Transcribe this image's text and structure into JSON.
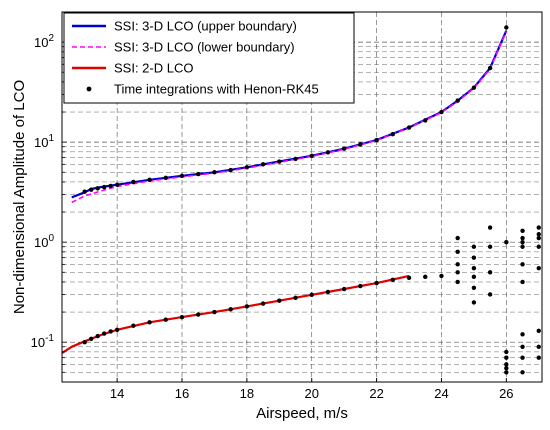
{
  "chart_data": {
    "type": "line",
    "xlabel": "Airspeed, m/s",
    "ylabel": "Non-dimensional Amplitude of LCO",
    "xlim": [
      12.3,
      27.1
    ],
    "ylim": [
      0.04,
      200
    ],
    "yscale": "log",
    "grid": true,
    "legend_placement": "top-left",
    "x_ticks": [
      14,
      16,
      18,
      20,
      22,
      24,
      26
    ],
    "y_ticks": [
      {
        "value": 0.1,
        "base": "10",
        "exp": "-1"
      },
      {
        "value": 1,
        "base": "10",
        "exp": "0"
      },
      {
        "value": 10,
        "base": "10",
        "exp": "1"
      },
      {
        "value": 100,
        "base": "10",
        "exp": "2"
      }
    ],
    "series": [
      {
        "name": "SSI: 3-D LCO (upper boundary)",
        "color": "#0000cc",
        "style": "solid",
        "x": [
          12.6,
          13.0,
          13.2,
          13.5,
          14.0,
          15.0,
          16.0,
          17.0,
          18.0,
          19.0,
          20.0,
          21.0,
          22.0,
          23.0,
          24.0,
          24.5,
          25.0,
          25.5,
          26.0
        ],
        "y": [
          2.8,
          3.15,
          3.4,
          3.55,
          3.75,
          4.2,
          4.6,
          5.0,
          5.6,
          6.4,
          7.3,
          8.6,
          10.5,
          14.0,
          20.0,
          26.0,
          35.0,
          55.0,
          130.0
        ]
      },
      {
        "name": "SSI: 3-D LCO (lower boundary)",
        "color": "#ff00ff",
        "style": "dashed",
        "x": [
          12.6,
          13.0,
          13.5,
          14.0,
          15.0,
          16.0,
          17.0,
          18.0,
          19.0,
          20.0,
          21.0,
          22.0,
          23.0,
          24.0,
          24.5,
          25.0,
          25.5,
          26.0
        ],
        "y": [
          2.5,
          2.9,
          3.25,
          3.6,
          4.1,
          4.5,
          4.9,
          5.5,
          6.3,
          7.2,
          8.5,
          10.4,
          13.9,
          19.8,
          25.5,
          34.5,
          54.0,
          128.0
        ]
      },
      {
        "name": "SSI: 2-D LCO",
        "color": "#e00000",
        "style": "solid",
        "x": [
          12.3,
          12.6,
          13.0,
          13.5,
          14.0,
          15.0,
          16.0,
          17.0,
          18.0,
          19.0,
          20.0,
          21.0,
          22.0,
          23.0
        ],
        "y": [
          0.078,
          0.09,
          0.102,
          0.118,
          0.133,
          0.158,
          0.178,
          0.2,
          0.228,
          0.26,
          0.298,
          0.34,
          0.39,
          0.46
        ]
      },
      {
        "name": "Time integrations with Henon-RK45",
        "color": "#000000",
        "style": "markers",
        "x": [
          13.0,
          13.2,
          13.4,
          13.6,
          13.8,
          14.0,
          14.5,
          15.0,
          15.5,
          16.0,
          16.5,
          17.0,
          17.5,
          18.0,
          18.5,
          19.0,
          19.5,
          20.0,
          20.5,
          21.0,
          21.5,
          22.0,
          22.5,
          23.0,
          23.5,
          24.0,
          24.5,
          25.0,
          25.5,
          26.0,
          13.0,
          13.2,
          13.4,
          13.6,
          13.8,
          14.0,
          14.5,
          15.0,
          15.5,
          16.0,
          16.5,
          17.0,
          17.5,
          18.0,
          18.5,
          19.0,
          19.5,
          20.0,
          20.5,
          21.0,
          21.5,
          22.0,
          22.5,
          23.0,
          23.5,
          24.0,
          24.5,
          24.5,
          24.5,
          24.5,
          24.5,
          25.0,
          25.0,
          25.0,
          25.0,
          25.0,
          25.0,
          25.5,
          25.5,
          25.5,
          25.5,
          26.0,
          26.0,
          26.0,
          26.0,
          26.0,
          26.0,
          26.5,
          26.5,
          26.5,
          26.5,
          26.5,
          26.5,
          26.5,
          26.5,
          26.5,
          26.5,
          27.0,
          27.0,
          27.0,
          27.0,
          27.0,
          27.0,
          27.0,
          27.0
        ],
        "y": [
          3.2,
          3.35,
          3.45,
          3.55,
          3.65,
          3.75,
          4.0,
          4.2,
          4.4,
          4.6,
          4.8,
          5.0,
          5.25,
          5.6,
          6.0,
          6.4,
          6.8,
          7.3,
          7.9,
          8.6,
          9.5,
          10.5,
          12.0,
          14.0,
          16.5,
          20.0,
          26.0,
          35.0,
          55.0,
          140.0,
          0.1,
          0.108,
          0.115,
          0.122,
          0.128,
          0.133,
          0.146,
          0.158,
          0.168,
          0.178,
          0.189,
          0.2,
          0.213,
          0.228,
          0.243,
          0.26,
          0.278,
          0.298,
          0.318,
          0.34,
          0.364,
          0.39,
          0.42,
          0.44,
          0.45,
          0.46,
          1.1,
          0.8,
          0.6,
          0.5,
          0.4,
          0.9,
          0.7,
          0.55,
          0.45,
          0.35,
          0.25,
          1.4,
          0.9,
          0.5,
          0.3,
          1.0,
          0.06,
          0.055,
          0.05,
          0.07,
          0.08,
          1.3,
          1.1,
          1.0,
          0.9,
          0.6,
          0.4,
          0.12,
          0.09,
          0.07,
          0.05,
          1.4,
          1.2,
          1.1,
          0.9,
          0.55,
          0.13,
          0.09,
          0.07
        ]
      }
    ]
  }
}
